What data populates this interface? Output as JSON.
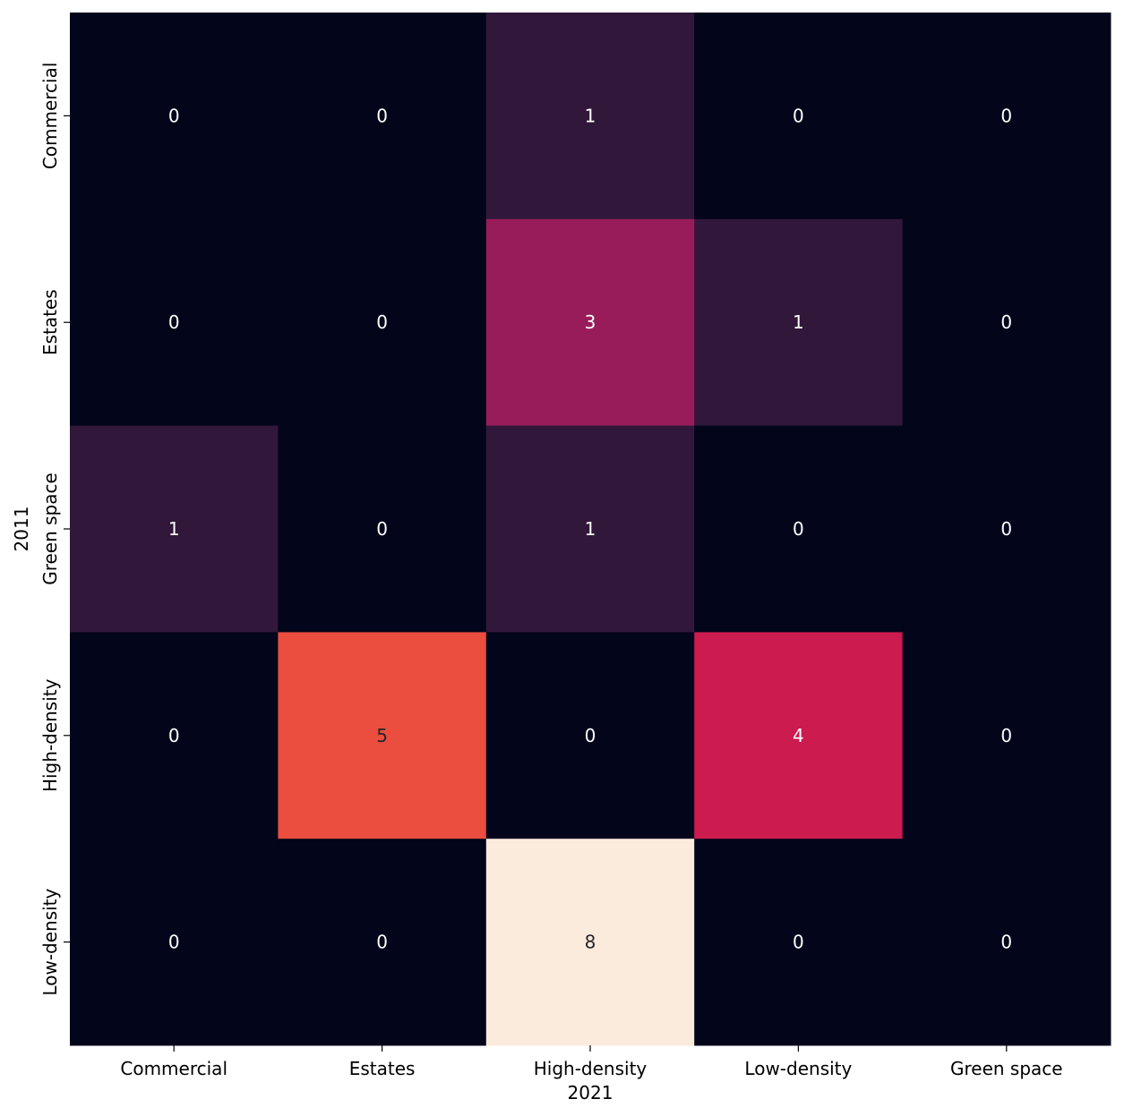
{
  "chart_data": {
    "type": "heatmap",
    "title": "",
    "xlabel": "2021",
    "ylabel": "2011",
    "x_categories": [
      "Commercial",
      "Estates",
      "High-density",
      "Low-density",
      "Green space"
    ],
    "y_categories": [
      "Commercial",
      "Estates",
      "Green space",
      "High-density",
      "Low-density"
    ],
    "values": [
      [
        0,
        0,
        1,
        0,
        0
      ],
      [
        0,
        0,
        3,
        1,
        0
      ],
      [
        1,
        0,
        1,
        0,
        0
      ],
      [
        0,
        5,
        0,
        4,
        0
      ],
      [
        0,
        0,
        8,
        0,
        0
      ]
    ],
    "value_range": [
      0,
      8
    ],
    "colormap": "rocket",
    "colorbar": false,
    "annotate": true,
    "colors": {
      "0": "#03051a",
      "1": "#31183a",
      "3": "#981c5a",
      "4": "#cb1b4f",
      "5": "#eb4d3e",
      "8": "#faebdd"
    },
    "annotation_colors": {
      "light": "#ffffff",
      "dark": "#262626"
    }
  }
}
